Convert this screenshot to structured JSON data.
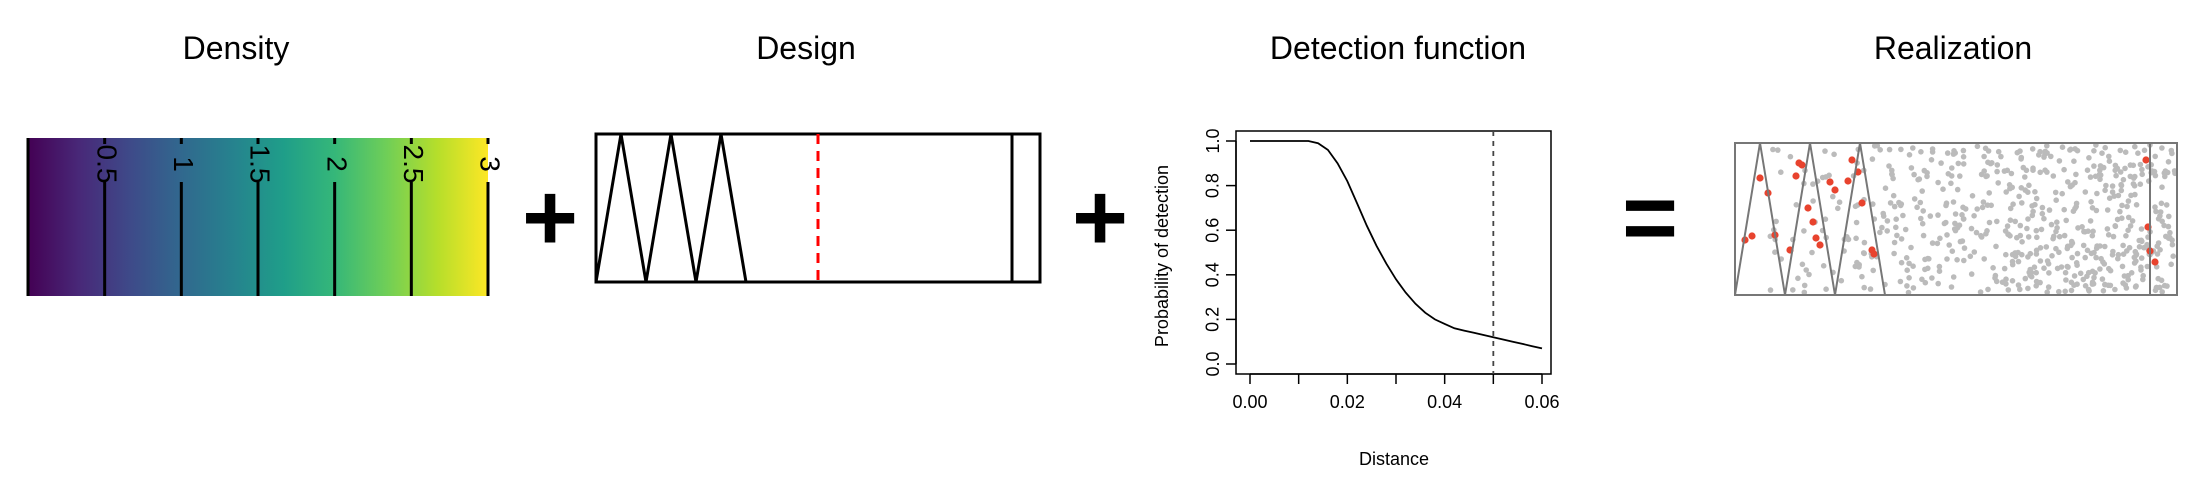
{
  "panels": {
    "density": {
      "title": "Density",
      "contour_labels": [
        "0.5",
        "1",
        "1.5",
        "2",
        "2.5",
        "3"
      ]
    },
    "design": {
      "title": "Design"
    },
    "detection": {
      "title": "Detection function"
    },
    "realization": {
      "title": "Realization"
    }
  },
  "operators": {
    "plus1": "+",
    "plus2": "+",
    "equals": "="
  },
  "colors": {
    "viridis": [
      "#440154",
      "#482878",
      "#3e4a89",
      "#31688e",
      "#26828e",
      "#1f9e89",
      "#35b779",
      "#6ece58",
      "#b5de2b",
      "#fde725"
    ],
    "transect_dashed": "#ff0000",
    "points_undetected": "#bbbbbb",
    "points_detected": "#e8432e"
  },
  "chart_data": {
    "type": "line",
    "title": "Detection function",
    "xlabel": "Distance",
    "ylabel": "Probability of detection",
    "xlim": [
      0,
      0.06
    ],
    "ylim": [
      0,
      1
    ],
    "x_ticks": [
      "0.00",
      "0.02",
      "0.04",
      "0.06"
    ],
    "y_ticks": [
      "0.0",
      "0.2",
      "0.4",
      "0.6",
      "0.8",
      "1.0"
    ],
    "x_tick_values": [
      0,
      0.02,
      0.04,
      0.06
    ],
    "y_tick_values": [
      0,
      0.2,
      0.4,
      0.6,
      0.8,
      1.0
    ],
    "truncation_line": {
      "x": 0.05,
      "style": "dashed"
    },
    "series": [
      {
        "x": [
          0,
          0.005,
          0.01,
          0.012,
          0.014,
          0.016,
          0.018,
          0.02,
          0.022,
          0.024,
          0.026,
          0.028,
          0.03,
          0.032,
          0.034,
          0.036,
          0.038,
          0.04,
          0.042,
          0.044,
          0.046,
          0.048,
          0.05,
          0.052,
          0.054,
          0.056,
          0.058,
          0.06
        ],
        "values": [
          1.0,
          1.0,
          1.0,
          1.0,
          0.99,
          0.96,
          0.9,
          0.82,
          0.72,
          0.62,
          0.53,
          0.45,
          0.38,
          0.32,
          0.27,
          0.23,
          0.2,
          0.18,
          0.16,
          0.15,
          0.14,
          0.13,
          0.12,
          0.11,
          0.1,
          0.09,
          0.08,
          0.07
        ]
      }
    ]
  }
}
